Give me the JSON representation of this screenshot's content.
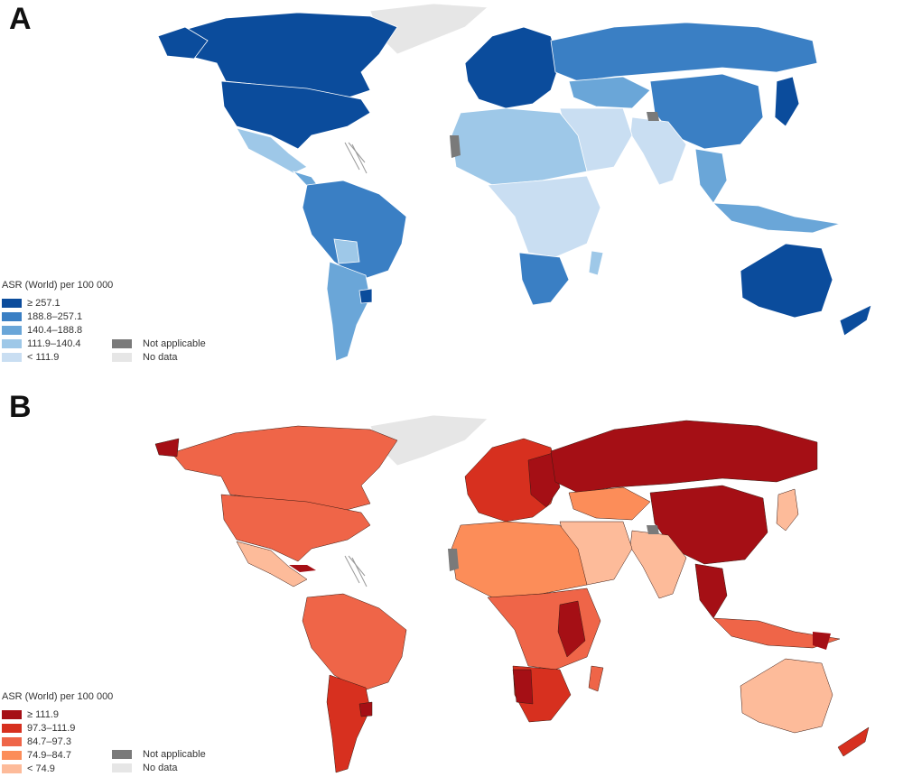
{
  "panels": [
    {
      "letter": "A",
      "legend_title": "ASR (World) per 100 000",
      "classes": [
        {
          "label": "≥ 257.1",
          "color": "#0b4c9c"
        },
        {
          "label": "188.8–257.1",
          "color": "#3a7fc4"
        },
        {
          "label": "140.4–188.8",
          "color": "#6aa6d8"
        },
        {
          "label": "111.9–140.4",
          "color": "#9ec8e8"
        },
        {
          "label": "< 111.9",
          "color": "#c9def2"
        }
      ],
      "not_applicable": {
        "label": "Not applicable",
        "color": "#7a7a7a"
      },
      "no_data": {
        "label": "No data",
        "color": "#e6e6e6"
      }
    },
    {
      "letter": "B",
      "legend_title": "ASR (World) per 100 000",
      "classes": [
        {
          "label": "≥ 111.9",
          "color": "#a50f15"
        },
        {
          "label": "97.3–111.9",
          "color": "#d7301f"
        },
        {
          "label": "84.7–97.3",
          "color": "#ef6548"
        },
        {
          "label": "74.9–84.7",
          "color": "#fc8d59"
        },
        {
          "label": "< 74.9",
          "color": "#fdbb9a"
        }
      ],
      "not_applicable": {
        "label": "Not applicable",
        "color": "#7a7a7a"
      },
      "no_data": {
        "label": "No data",
        "color": "#e6e6e6"
      }
    }
  ]
}
